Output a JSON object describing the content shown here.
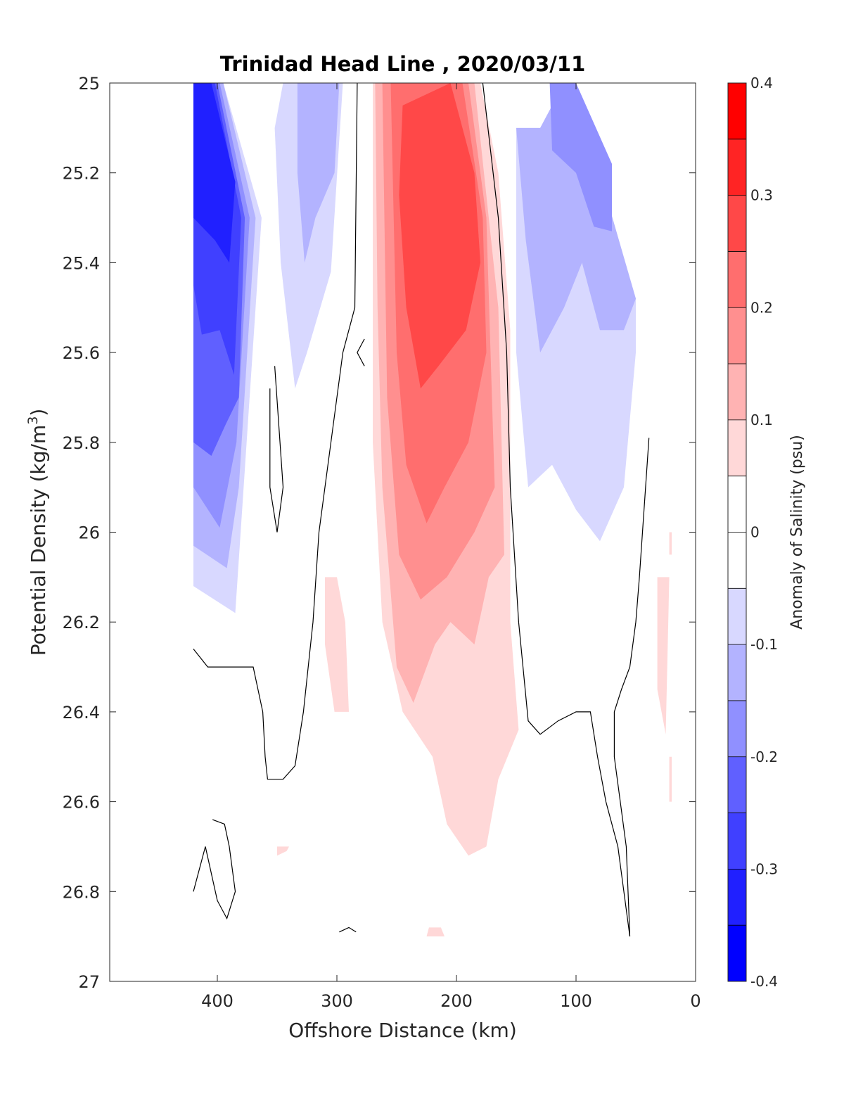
{
  "chart_data": {
    "type": "contour",
    "title": "Trinidad Head Line , 2020/03/11",
    "xlabel": "Offshore Distance (km)",
    "ylabel_main": "Potential Density (kg/m",
    "ylabel_sup": "3",
    "ylabel_end": ")",
    "xlim": [
      490,
      0
    ],
    "ylim": [
      25,
      27
    ],
    "y_reversed": true,
    "x_ticks": [
      400,
      300,
      200,
      100,
      0
    ],
    "y_ticks": [
      25,
      25.2,
      25.4,
      25.6,
      25.8,
      26,
      26.2,
      26.4,
      26.6,
      26.8,
      27
    ],
    "x_tick_labels": [
      "400",
      "300",
      "200",
      "100",
      "0"
    ],
    "y_tick_labels": [
      "25",
      "25.2",
      "25.4",
      "25.6",
      "25.8",
      "26",
      "26.2",
      "26.4",
      "26.6",
      "26.8",
      "27"
    ],
    "colorbar": {
      "label": "Anomaly of Salinity (psu)",
      "range": [
        -0.4,
        0.4
      ],
      "step": 0.05,
      "tick_values": [
        -0.4,
        -0.3,
        -0.2,
        -0.1,
        0,
        0.1,
        0.2,
        0.3,
        0.4
      ],
      "tick_labels": [
        "-0.4",
        "-0.3",
        "-0.2",
        "-0.1",
        "0",
        "0.1",
        "0.2",
        "0.3",
        "0.4"
      ],
      "colors": [
        "#0000ff",
        "#2020ff",
        "#4040ff",
        "#6060ff",
        "#9090ff",
        "#b3b3ff",
        "#d8d8ff",
        "#ffffff",
        "#ffffff",
        "#ffd8d8",
        "#ffb3b3",
        "#ff8f8f",
        "#ff6e6e",
        "#ff4848",
        "#ff2424",
        "#ff0000"
      ]
    },
    "filled_regions": [
      {
        "level": -0.1,
        "color": "#d8d8ff",
        "points": [
          [
            420,
            25
          ],
          [
            395,
            25
          ],
          [
            363,
            25.3
          ],
          [
            385,
            26.18
          ],
          [
            420,
            26.12
          ]
        ]
      },
      {
        "level": -0.15,
        "color": "#b3b3ff",
        "points": [
          [
            420,
            25
          ],
          [
            395,
            25
          ],
          [
            368,
            25.3
          ],
          [
            382,
            25.9
          ],
          [
            392,
            26.08
          ],
          [
            420,
            26.03
          ]
        ]
      },
      {
        "level": -0.2,
        "color": "#9090ff",
        "points": [
          [
            420,
            25
          ],
          [
            398,
            25
          ],
          [
            373,
            25.3
          ],
          [
            384,
            25.8
          ],
          [
            398,
            25.99
          ],
          [
            420,
            25.9
          ]
        ]
      },
      {
        "level": -0.25,
        "color": "#6060ff",
        "points": [
          [
            420,
            25
          ],
          [
            400,
            25
          ],
          [
            377,
            25.3
          ],
          [
            382,
            25.7
          ],
          [
            393,
            25.76
          ],
          [
            405,
            25.83
          ],
          [
            420,
            25.8
          ]
        ]
      },
      {
        "level": -0.3,
        "color": "#4040ff",
        "points": [
          [
            420,
            25
          ],
          [
            402,
            25
          ],
          [
            380,
            25.3
          ],
          [
            386,
            25.65
          ],
          [
            398,
            25.55
          ],
          [
            413,
            25.56
          ],
          [
            420,
            25.45
          ]
        ]
      },
      {
        "level": -0.35,
        "color": "#2020ff",
        "points": [
          [
            420,
            25
          ],
          [
            405,
            25
          ],
          [
            385,
            25.22
          ],
          [
            390,
            25.4
          ],
          [
            402,
            25.35
          ],
          [
            420,
            25.3
          ]
        ]
      },
      {
        "level": -0.1,
        "color": "#d8d8ff",
        "points": [
          [
            345,
            25
          ],
          [
            295,
            25
          ],
          [
            305,
            25.42
          ],
          [
            325,
            25.6
          ],
          [
            335,
            25.68
          ],
          [
            347,
            25.4
          ],
          [
            352,
            25.1
          ]
        ]
      },
      {
        "level": -0.15,
        "color": "#b3b3ff",
        "points": [
          [
            333,
            25
          ],
          [
            298,
            25
          ],
          [
            302,
            25.2
          ],
          [
            318,
            25.3
          ],
          [
            327,
            25.4
          ],
          [
            333,
            25.2
          ]
        ]
      },
      {
        "level": -0.1,
        "color": "#d8d8ff",
        "points": [
          [
            150,
            25.1
          ],
          [
            150,
            25.6
          ],
          [
            140,
            25.9
          ],
          [
            120,
            25.85
          ],
          [
            100,
            25.95
          ],
          [
            80,
            26.02
          ],
          [
            60,
            25.9
          ],
          [
            50,
            25.6
          ],
          [
            50,
            25.48
          ],
          [
            75,
            25.25
          ],
          [
            110,
            25.05
          ],
          [
            130,
            25.1
          ]
        ]
      },
      {
        "level": -0.15,
        "color": "#b3b3ff",
        "points": [
          [
            150,
            25.1
          ],
          [
            142,
            25.35
          ],
          [
            130,
            25.6
          ],
          [
            110,
            25.5
          ],
          [
            95,
            25.4
          ],
          [
            80,
            25.55
          ],
          [
            60,
            25.55
          ],
          [
            50,
            25.48
          ],
          [
            75,
            25.25
          ],
          [
            110,
            25
          ],
          [
            130,
            25.1
          ]
        ]
      },
      {
        "level": -0.2,
        "color": "#9090ff",
        "points": [
          [
            122,
            25
          ],
          [
            100,
            25
          ],
          [
            70,
            25.18
          ],
          [
            70,
            25.33
          ],
          [
            85,
            25.32
          ],
          [
            100,
            25.2
          ],
          [
            120,
            25.15
          ]
        ]
      },
      {
        "level": 0.05,
        "color": "#ffd8d8",
        "points": [
          [
            270,
            25
          ],
          [
            180,
            25
          ],
          [
            165,
            25.2
          ],
          [
            155,
            25.55
          ],
          [
            155,
            26.2
          ],
          [
            148,
            26.44
          ],
          [
            165,
            26.55
          ],
          [
            175,
            26.7
          ],
          [
            190,
            26.72
          ],
          [
            208,
            26.65
          ],
          [
            220,
            26.5
          ],
          [
            245,
            26.4
          ],
          [
            262,
            26.2
          ],
          [
            270,
            25.8
          ]
        ]
      },
      {
        "level": 0.1,
        "color": "#ffb3b3",
        "points": [
          [
            268,
            25
          ],
          [
            185,
            25
          ],
          [
            165,
            25.5
          ],
          [
            160,
            26.05
          ],
          [
            173,
            26.1
          ],
          [
            185,
            26.25
          ],
          [
            205,
            26.2
          ],
          [
            218,
            26.25
          ],
          [
            236,
            26.38
          ],
          [
            250,
            26.3
          ],
          [
            262,
            25.9
          ],
          [
            266,
            25.5
          ]
        ]
      },
      {
        "level": 0.15,
        "color": "#ff8f8f",
        "points": [
          [
            262,
            25
          ],
          [
            190,
            25
          ],
          [
            175,
            25.3
          ],
          [
            168,
            25.9
          ],
          [
            185,
            26.0
          ],
          [
            208,
            26.1
          ],
          [
            230,
            26.15
          ],
          [
            248,
            26.05
          ],
          [
            258,
            25.7
          ]
        ]
      },
      {
        "level": 0.2,
        "color": "#ff6e6e",
        "points": [
          [
            255,
            25
          ],
          [
            195,
            25
          ],
          [
            178,
            25.3
          ],
          [
            175,
            25.6
          ],
          [
            190,
            25.8
          ],
          [
            210,
            25.9
          ],
          [
            225,
            25.98
          ],
          [
            242,
            25.85
          ],
          [
            250,
            25.6
          ]
        ]
      },
      {
        "level": 0.25,
        "color": "#ff4848",
        "points": [
          [
            245,
            25.05
          ],
          [
            205,
            25
          ],
          [
            185,
            25.2
          ],
          [
            180,
            25.4
          ],
          [
            192,
            25.55
          ],
          [
            215,
            25.63
          ],
          [
            230,
            25.68
          ],
          [
            242,
            25.5
          ],
          [
            248,
            25.25
          ]
        ]
      },
      {
        "level": 0.05,
        "color": "#ffd8d8",
        "points": [
          [
            310,
            26.1
          ],
          [
            300,
            26.1
          ],
          [
            293,
            26.2
          ],
          [
            290,
            26.4
          ],
          [
            302,
            26.4
          ],
          [
            310,
            26.25
          ]
        ]
      },
      {
        "level": 0.05,
        "color": "#ffd8d8",
        "points": [
          [
            32,
            26.1
          ],
          [
            22,
            26.1
          ],
          [
            25,
            26.45
          ],
          [
            32,
            26.35
          ]
        ]
      },
      {
        "level": 0.05,
        "color": "#ffd8d8",
        "points": [
          [
            22,
            26.5
          ],
          [
            20,
            26.5
          ],
          [
            20,
            26.6
          ],
          [
            22,
            26.6
          ]
        ]
      },
      {
        "level": 0.05,
        "color": "#ffd8d8",
        "points": [
          [
            22,
            26
          ],
          [
            20,
            26
          ],
          [
            20,
            26.05
          ],
          [
            22,
            26.05
          ]
        ]
      },
      {
        "level": 0.05,
        "color": "#ffd8d8",
        "points": [
          [
            223,
            26.88
          ],
          [
            213,
            26.88
          ],
          [
            210,
            26.9
          ],
          [
            225,
            26.9
          ]
        ]
      },
      {
        "level": 0.05,
        "color": "#ffd8d8",
        "points": [
          [
            350,
            26.7
          ],
          [
            340,
            26.7
          ],
          [
            342,
            26.71
          ],
          [
            350,
            26.72
          ]
        ]
      }
    ],
    "zero_contours": [
      [
        [
          283,
          25
        ],
        [
          285,
          25.5
        ],
        [
          295,
          25.6
        ],
        [
          305,
          25.8
        ],
        [
          315,
          26
        ],
        [
          320,
          26.2
        ],
        [
          328,
          26.4
        ],
        [
          335,
          26.52
        ],
        [
          345,
          26.55
        ],
        [
          358,
          26.55
        ],
        [
          360,
          26.5
        ],
        [
          362,
          26.4
        ],
        [
          370,
          26.3
        ],
        [
          385,
          26.3
        ],
        [
          392,
          26.3
        ],
        [
          400,
          26.3
        ],
        [
          408,
          26.3
        ],
        [
          420,
          26.26
        ]
      ],
      [
        [
          178,
          25
        ],
        [
          165,
          25.3
        ],
        [
          158,
          25.6
        ],
        [
          155,
          25.9
        ],
        [
          148,
          26.2
        ],
        [
          140,
          26.42
        ],
        [
          130,
          26.45
        ],
        [
          115,
          26.42
        ],
        [
          100,
          26.4
        ],
        [
          88,
          26.4
        ],
        [
          82,
          26.5
        ],
        [
          75,
          26.6
        ],
        [
          65,
          26.7
        ],
        [
          60,
          26.8
        ],
        [
          55,
          26.9
        ]
      ],
      [
        [
          39,
          25.79
        ],
        [
          47,
          26.1
        ],
        [
          50,
          26.2
        ],
        [
          55,
          26.3
        ],
        [
          62,
          26.35
        ],
        [
          68,
          26.4
        ],
        [
          68,
          26.5
        ],
        [
          63,
          26.6
        ],
        [
          58,
          26.7
        ],
        [
          55,
          26.9
        ]
      ],
      [
        [
          352,
          25.63
        ],
        [
          345,
          25.9
        ],
        [
          350,
          26.0
        ],
        [
          356,
          25.9
        ],
        [
          356,
          25.68
        ]
      ],
      [
        [
          277,
          25.57
        ],
        [
          283,
          25.6
        ],
        [
          277,
          25.63
        ]
      ],
      [
        [
          404,
          26.64
        ],
        [
          394,
          26.65
        ],
        [
          390,
          26.7
        ],
        [
          385,
          26.8
        ],
        [
          392,
          26.86
        ],
        [
          400,
          26.82
        ],
        [
          410,
          26.7
        ],
        [
          420,
          26.8
        ]
      ],
      [
        [
          298,
          26.89
        ],
        [
          290,
          26.88
        ],
        [
          284,
          26.89
        ]
      ]
    ]
  }
}
